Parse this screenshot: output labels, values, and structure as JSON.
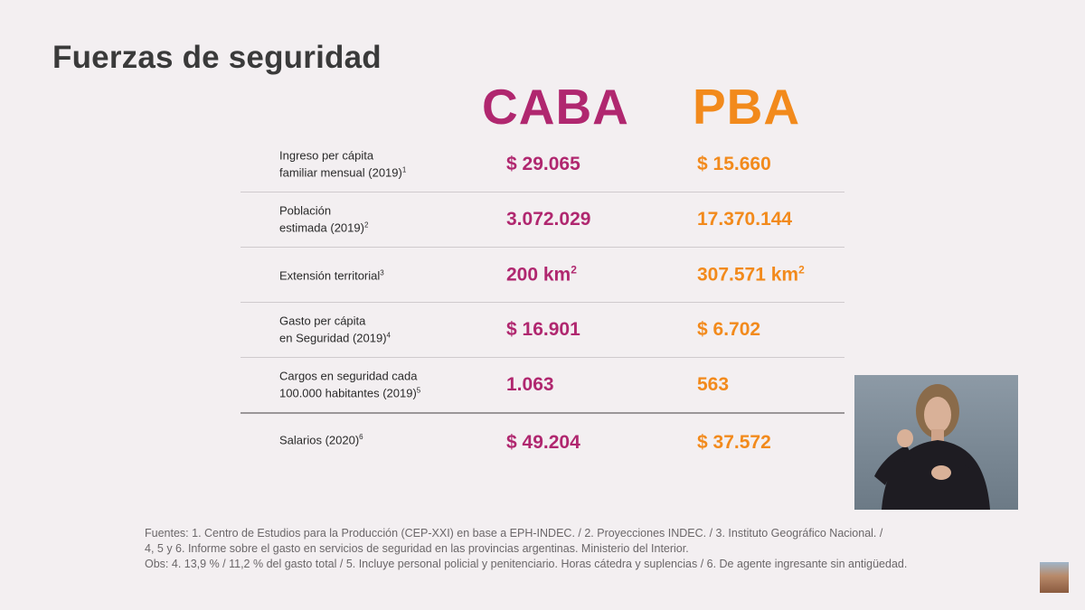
{
  "slide": {
    "title": "Fuerzas de seguridad",
    "colors": {
      "caba": "#b0276f",
      "pba": "#f28a1c",
      "text": "#3a3a3a"
    },
    "columns": {
      "caba": "CABA",
      "pba": "PBA"
    },
    "rows": [
      {
        "label_lines": [
          "Ingreso per cápita",
          "familiar mensual (2019)"
        ],
        "note": "1",
        "caba": "$ 29.065",
        "pba": "$ 15.660"
      },
      {
        "label_lines": [
          "Población",
          "estimada (2019)"
        ],
        "note": "2",
        "caba": "3.072.029",
        "pba": "17.370.144"
      },
      {
        "label_lines": [
          "Extensión territorial"
        ],
        "note": "3",
        "caba": "200 km",
        "caba_sup": "2",
        "pba": "307.571 km",
        "pba_sup": "2"
      },
      {
        "label_lines": [
          "Gasto per cápita",
          "en Seguridad (2019)"
        ],
        "note": "4",
        "caba": "$ 16.901",
        "pba": "$ 6.702"
      },
      {
        "label_lines": [
          "Cargos en seguridad cada",
          "100.000 habitantes (2019)"
        ],
        "note": "5",
        "caba": "1.063",
        "pba": "563"
      },
      {
        "label_lines": [
          "Salarios (2020)"
        ],
        "note": "6",
        "caba": "$ 49.204",
        "pba": "$ 37.572"
      }
    ],
    "sources": [
      "Fuentes: 1. Centro de Estudios para la Producción (CEP-XXI) en base a EPH-INDEC. / 2. Proyecciones INDEC. / 3. Instituto Geográfico Nacional. /",
      "4, 5 y 6. Informe sobre el gasto en servicios de seguridad en las provincias argentinas. Ministerio del Interior.",
      "Obs: 4. 13,9 % / 11,2 % del gasto total / 5. Incluye personal policial y penitenciario. Horas cátedra y suplencias / 6. De agente ingresante sin antigüedad."
    ]
  },
  "overlays": {
    "interpreter_video": "sign-language-interpreter",
    "corner_thumbnail": "building-thumbnail"
  }
}
